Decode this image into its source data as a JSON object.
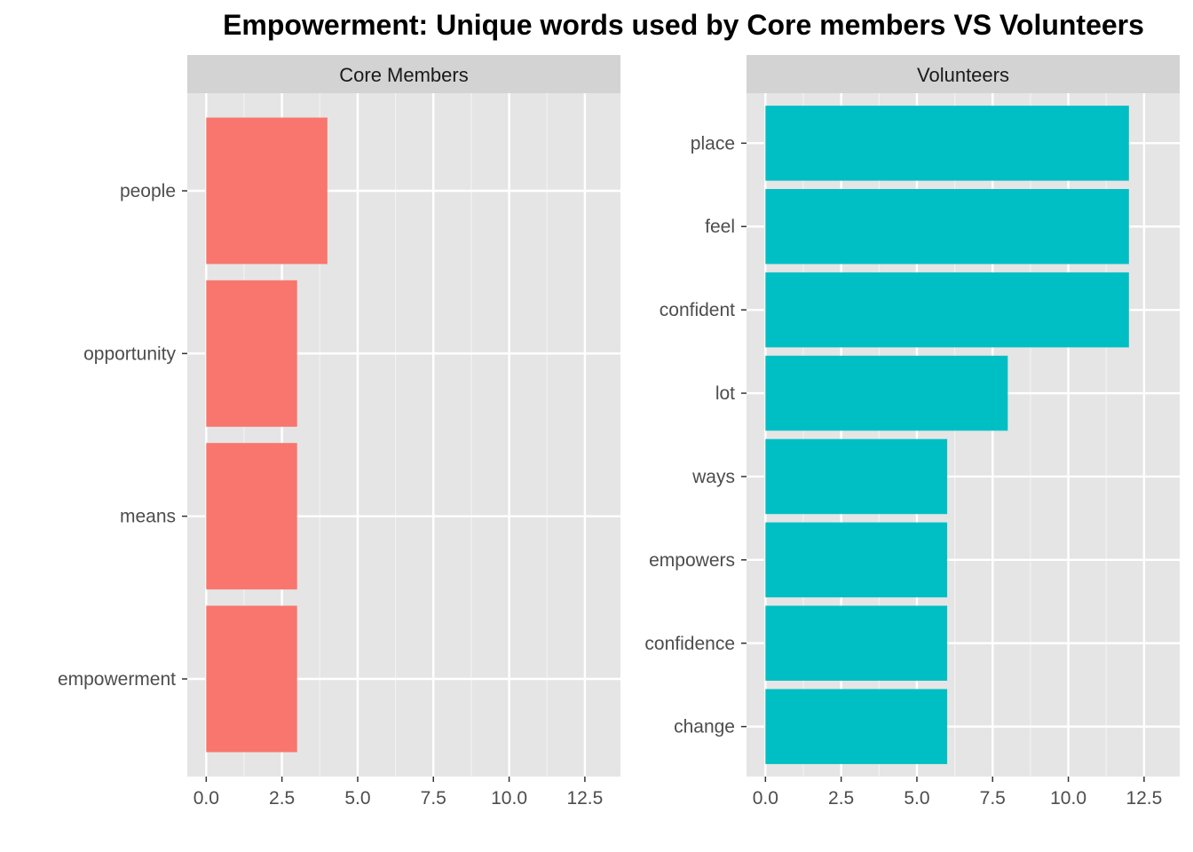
{
  "chart_data": {
    "type": "bar",
    "orientation": "horizontal",
    "title": "Empowerment: Unique words used by Core members VS Volunteers",
    "xlim": [
      0,
      12.5
    ],
    "xticks": [
      "0.0",
      "2.5",
      "5.0",
      "7.5",
      "10.0",
      "12.5"
    ],
    "grid": true,
    "legend": "none",
    "panels": [
      {
        "strip_label": "Core Members",
        "color": "#F8766D",
        "categories": [
          "people",
          "opportunity",
          "means",
          "empowerment"
        ],
        "values": [
          4,
          3,
          3,
          3
        ]
      },
      {
        "strip_label": "Volunteers",
        "color": "#00BFC4",
        "categories": [
          "place",
          "feel",
          "confident",
          "lot",
          "ways",
          "empowers",
          "confidence",
          "change"
        ],
        "values": [
          12,
          12,
          12,
          8,
          6,
          6,
          6,
          6
        ]
      }
    ]
  },
  "colors": {
    "panel_background": "#E5E5E5",
    "strip_background": "#D3D3D3",
    "grid_major": "#FFFFFF",
    "grid_minor": "#F2F2F2"
  }
}
